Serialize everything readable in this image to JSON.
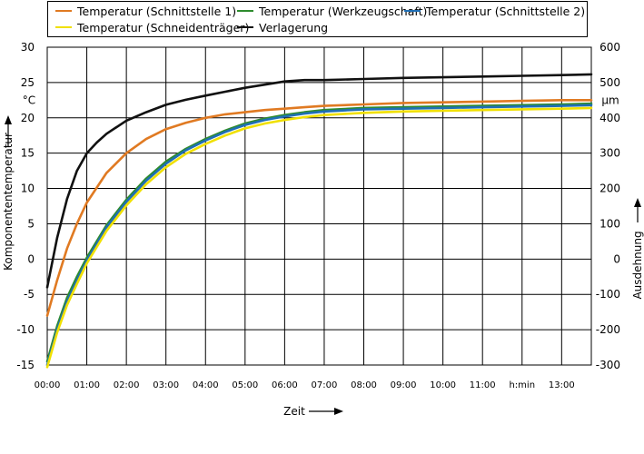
{
  "chart_data": {
    "type": "line",
    "legend": [
      {
        "label": "Temperatur (Schnittstelle 1)",
        "color": "#e07a22"
      },
      {
        "label": "Temperatur (Werkzeugschaft)",
        "color": "#2e8b2e"
      },
      {
        "label": "Temperatur (Schnittstelle 2)",
        "color": "#1f6fb5"
      },
      {
        "label": "Temperatur (Schneidenträger)",
        "color": "#f0e000"
      },
      {
        "label": "Verlagerung",
        "color": "#111111"
      }
    ],
    "x_ticks": [
      "00:00",
      "01:00",
      "02:00",
      "03:00",
      "04:00",
      "05:00",
      "06:00",
      "07:00",
      "08:00",
      "09:00",
      "10:00",
      "11:00",
      "h:min",
      "13:00"
    ],
    "xlabel": "Zeit",
    "ylabel_left": "Komponententemperatur",
    "ylabel_right": "Ausdehnung",
    "left_unit": "°C",
    "right_unit": "µm",
    "y_left_ticks": [
      "30",
      "25",
      "20",
      "15",
      "10",
      "5",
      "0",
      "-5",
      "-10",
      "-15"
    ],
    "y_right_ticks": [
      "600",
      "500",
      "400",
      "300",
      "200",
      "100",
      "0",
      "-100",
      "-200",
      "-300"
    ],
    "ylim_left": [
      -15,
      30
    ],
    "ylim_right": [
      -300,
      600
    ],
    "xlim_hours": [
      0,
      13.75
    ],
    "series": [
      {
        "name": "Temperatur (Schnittstelle 1)",
        "axis": "left",
        "color": "#e07a22",
        "x": [
          0,
          0.25,
          0.5,
          0.75,
          1,
          1.5,
          2,
          2.5,
          3,
          3.5,
          4,
          4.5,
          5,
          5.5,
          6,
          6.5,
          7,
          8,
          9,
          10,
          11,
          12,
          13,
          13.75
        ],
        "y": [
          -8,
          -3,
          1.5,
          5,
          8,
          12.2,
          15,
          17,
          18.4,
          19.3,
          20,
          20.5,
          20.8,
          21.1,
          21.3,
          21.5,
          21.7,
          21.9,
          22.1,
          22.2,
          22.3,
          22.4,
          22.5,
          22.5
        ]
      },
      {
        "name": "Temperatur (Werkzeugschaft)",
        "axis": "left",
        "color": "#2e8b2e",
        "x": [
          0,
          0.25,
          0.5,
          0.75,
          1,
          1.5,
          2,
          2.5,
          3,
          3.5,
          4,
          4.5,
          5,
          5.5,
          6,
          6.5,
          7,
          8,
          9,
          10,
          11,
          12,
          13,
          13.75
        ],
        "y": [
          -14.5,
          -9.5,
          -5.5,
          -2.5,
          0.2,
          4.8,
          8.4,
          11.4,
          13.8,
          15.6,
          17,
          18.2,
          19.2,
          19.9,
          20.4,
          20.8,
          21.1,
          21.4,
          21.5,
          21.6,
          21.7,
          21.8,
          21.9,
          22
        ]
      },
      {
        "name": "Temperatur (Schnittstelle 2)",
        "axis": "left",
        "color": "#1f6fb5",
        "x": [
          0,
          0.25,
          0.5,
          0.75,
          1,
          1.5,
          2,
          2.5,
          3,
          3.5,
          4,
          4.5,
          5,
          5.5,
          6,
          6.5,
          7,
          8,
          9,
          10,
          11,
          12,
          13,
          13.75
        ],
        "y": [
          -15,
          -10,
          -6,
          -3,
          -0.2,
          4.5,
          8.1,
          11.1,
          13.5,
          15.4,
          16.8,
          18,
          19,
          19.7,
          20.2,
          20.6,
          20.9,
          21.2,
          21.3,
          21.4,
          21.5,
          21.6,
          21.7,
          21.8
        ]
      },
      {
        "name": "Temperatur (Schneidenträger)",
        "axis": "left",
        "color": "#f0e000",
        "x": [
          0,
          0.25,
          0.5,
          0.75,
          1,
          1.5,
          2,
          2.5,
          3,
          3.5,
          4,
          4.5,
          5,
          5.5,
          6,
          6.5,
          7,
          8,
          9,
          10,
          11,
          12,
          13,
          13.75
        ],
        "y": [
          -15.3,
          -10.4,
          -6.5,
          -3.5,
          -0.6,
          4,
          7.6,
          10.6,
          13,
          14.9,
          16.3,
          17.5,
          18.5,
          19.2,
          19.7,
          20.1,
          20.4,
          20.7,
          20.9,
          21,
          21.1,
          21.2,
          21.3,
          21.4
        ]
      },
      {
        "name": "Verlagerung",
        "axis": "right",
        "color": "#111111",
        "x": [
          0,
          0.25,
          0.5,
          0.75,
          1,
          1.25,
          1.5,
          2,
          2.5,
          3,
          3.5,
          4,
          4.5,
          5,
          5.5,
          6,
          6.5,
          7,
          8,
          9,
          10,
          11,
          12,
          13,
          13.75
        ],
        "y": [
          -80,
          60,
          170,
          250,
          300,
          330,
          355,
          392,
          416,
          437,
          451,
          463,
          474,
          485,
          494,
          503,
          507,
          507,
          510,
          513,
          515,
          517,
          519,
          521,
          523
        ]
      }
    ]
  }
}
